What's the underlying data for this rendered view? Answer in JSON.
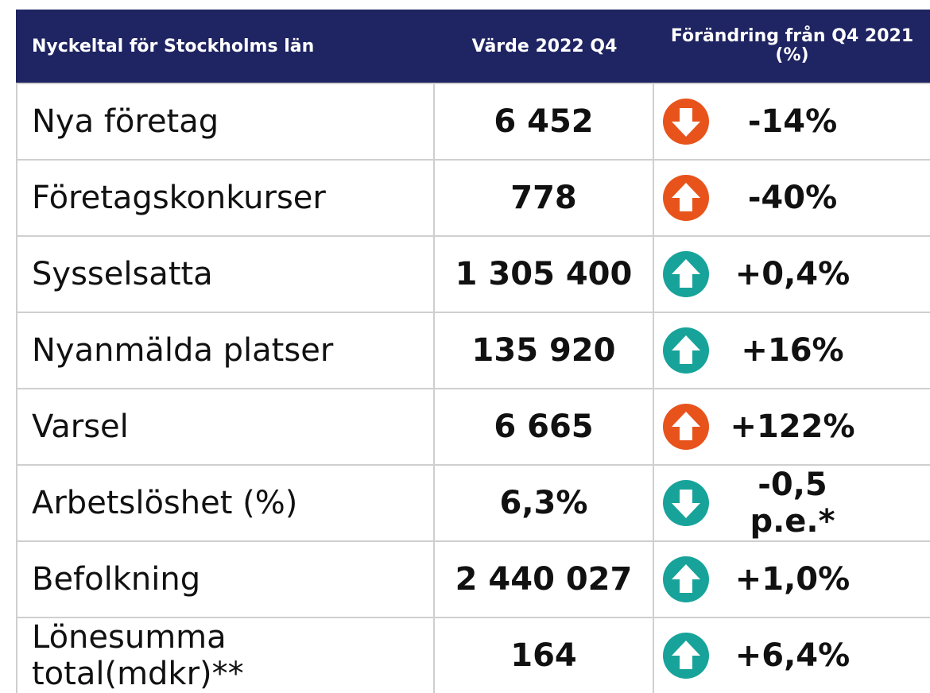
{
  "table": {
    "header": [
      "Nyckeltal för Stockholms län",
      "Värde 2022 Q4",
      "Förändring från Q4 2021 (%)"
    ],
    "rows": [
      [
        "Nya företag",
        "6 452",
        "-14%"
      ],
      [
        "Företagskonkurser",
        "778",
        "-40%"
      ],
      [
        "Sysselsatta",
        "1 305 400",
        "+0,4%"
      ],
      [
        "Nyanmälda platser",
        "135 920",
        "+16%"
      ],
      [
        "Varsel",
        "6 665",
        "+122%"
      ],
      [
        "Arbetslöshet (%)",
        "6,3%",
        "-0,5 p.e.*"
      ],
      [
        "Befolkning",
        "2 440 027",
        "+1,0%"
      ],
      [
        "Lönesumma total(mdkr)**",
        "164",
        "+6,4%"
      ]
    ]
  }
}
